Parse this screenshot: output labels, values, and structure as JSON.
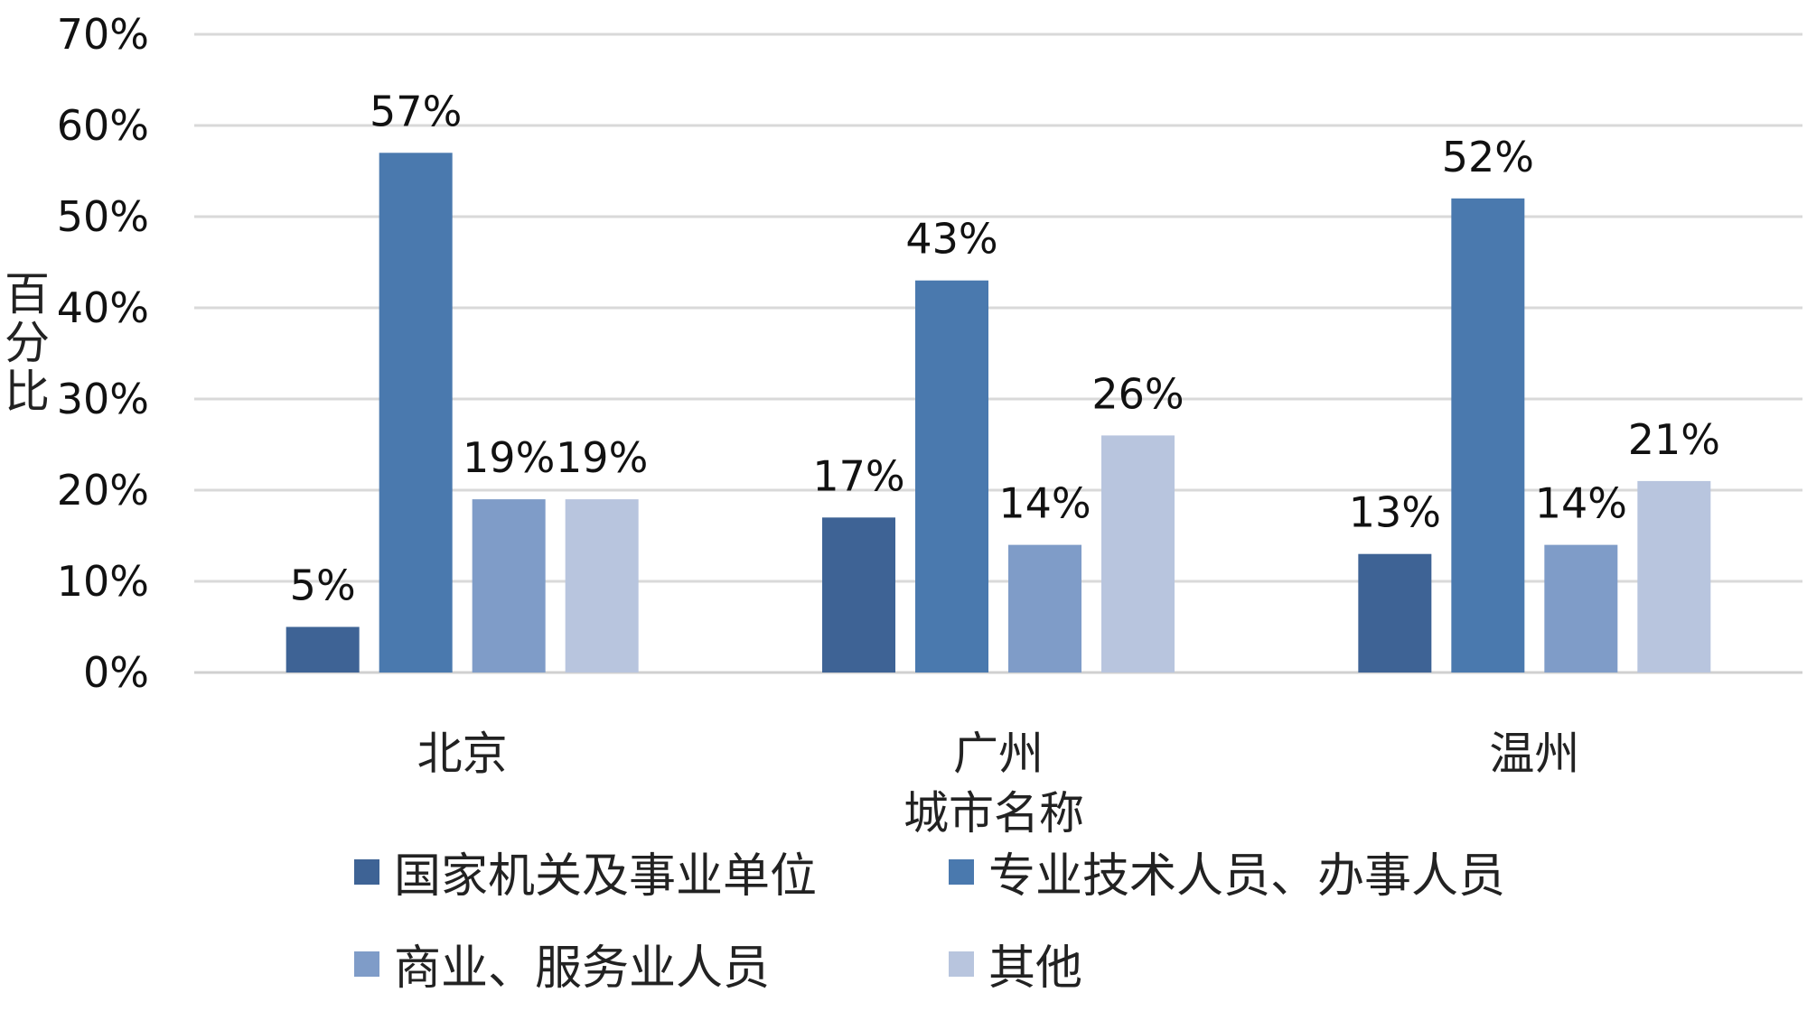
{
  "chart_data": {
    "type": "bar",
    "title": "",
    "xlabel": "城市名称",
    "ylabel": "百分比",
    "ylim": [
      0,
      70
    ],
    "ytick_step": 10,
    "value_suffix": "%",
    "grid": true,
    "legend_position": "bottom",
    "categories": [
      "北京",
      "广州",
      "温州"
    ],
    "series": [
      {
        "name": "国家机关及事业单位",
        "color": "#3e6395",
        "values": [
          5,
          17,
          13
        ]
      },
      {
        "name": "专业技术人员、办事人员",
        "color": "#4a79ae",
        "values": [
          57,
          43,
          52
        ]
      },
      {
        "name": "商业、服务业人员",
        "color": "#7f9cc8",
        "values": [
          19,
          14,
          14
        ]
      },
      {
        "name": "其他",
        "color": "#b8c5de",
        "values": [
          19,
          26,
          21
        ]
      }
    ]
  }
}
